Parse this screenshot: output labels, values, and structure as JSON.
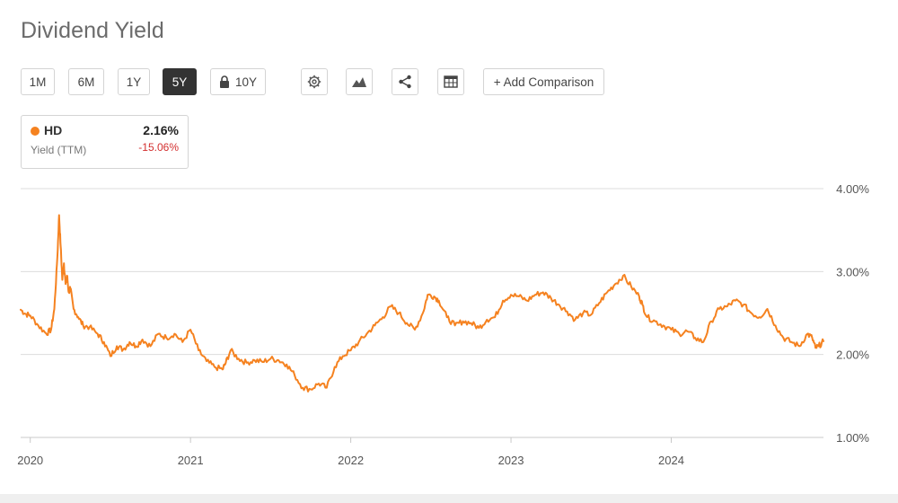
{
  "page": {
    "title": "Dividend Yield"
  },
  "toolbar": {
    "ranges": [
      {
        "label": "1M",
        "active": false
      },
      {
        "label": "6M",
        "active": false
      },
      {
        "label": "1Y",
        "active": false
      },
      {
        "label": "5Y",
        "active": true
      },
      {
        "label": "10Y",
        "active": false,
        "locked": true
      }
    ],
    "icons": [
      "gear-icon",
      "mountain-chart-icon",
      "share-icon",
      "table-icon"
    ],
    "add_comparison": "+ Add Comparison"
  },
  "legend": {
    "symbol": "HD",
    "value": "2.16%",
    "metric": "Yield (TTM)",
    "change": "-15.06%",
    "dot_color": "#f58220",
    "change_color": "#d32f2f"
  },
  "colors": {
    "line": "#f58220",
    "grid": "#dcdcdc",
    "axis_text": "#555555"
  },
  "chart_data": {
    "type": "line",
    "title": "Dividend Yield",
    "xlabel": "",
    "ylabel": "",
    "x_tick_labels": [
      "2020",
      "2021",
      "2022",
      "2023",
      "2024"
    ],
    "y_tick_labels": [
      "1.00%",
      "2.00%",
      "3.00%",
      "4.00%"
    ],
    "ylim": [
      1.0,
      4.0
    ],
    "xlim": [
      2019.94,
      2024.95
    ],
    "grid": "horizontal",
    "legend_position": "top-left",
    "series": [
      {
        "name": "HD",
        "x": [
          2019.94,
          2019.97,
          2020.0,
          2020.05,
          2020.1,
          2020.13,
          2020.15,
          2020.17,
          2020.18,
          2020.19,
          2020.2,
          2020.21,
          2020.22,
          2020.23,
          2020.24,
          2020.25,
          2020.27,
          2020.3,
          2020.33,
          2020.37,
          2020.42,
          2020.46,
          2020.5,
          2020.54,
          2020.58,
          2020.62,
          2020.66,
          2020.7,
          2020.75,
          2020.8,
          2020.85,
          2020.9,
          2020.95,
          2021.0,
          2021.05,
          2021.1,
          2021.15,
          2021.2,
          2021.22,
          2021.25,
          2021.3,
          2021.35,
          2021.4,
          2021.45,
          2021.5,
          2021.55,
          2021.6,
          2021.65,
          2021.7,
          2021.75,
          2021.8,
          2021.85,
          2021.9,
          2021.95,
          2022.0,
          2022.05,
          2022.1,
          2022.15,
          2022.2,
          2022.25,
          2022.3,
          2022.35,
          2022.4,
          2022.45,
          2022.48,
          2022.52,
          2022.55,
          2022.6,
          2022.65,
          2022.7,
          2022.75,
          2022.8,
          2022.85,
          2022.9,
          2022.95,
          2023.0,
          2023.05,
          2023.1,
          2023.15,
          2023.2,
          2023.25,
          2023.3,
          2023.35,
          2023.4,
          2023.45,
          2023.5,
          2023.55,
          2023.6,
          2023.65,
          2023.7,
          2023.75,
          2023.8,
          2023.82,
          2023.85,
          2023.9,
          2023.95,
          2024.0,
          2024.05,
          2024.1,
          2024.15,
          2024.2,
          2024.25,
          2024.3,
          2024.35,
          2024.4,
          2024.45,
          2024.5,
          2024.55,
          2024.6,
          2024.65,
          2024.7,
          2024.75,
          2024.8,
          2024.85,
          2024.88,
          2024.9,
          2024.92,
          2024.95
        ],
        "values": [
          2.54,
          2.49,
          2.47,
          2.35,
          2.25,
          2.3,
          2.55,
          3.2,
          3.68,
          3.3,
          2.9,
          3.1,
          2.85,
          2.95,
          2.75,
          2.8,
          2.55,
          2.45,
          2.35,
          2.33,
          2.25,
          2.15,
          1.98,
          2.1,
          2.06,
          2.15,
          2.1,
          2.18,
          2.1,
          2.25,
          2.2,
          2.25,
          2.15,
          2.3,
          2.05,
          1.92,
          1.85,
          1.82,
          1.9,
          2.05,
          1.95,
          1.9,
          1.93,
          1.91,
          1.95,
          1.93,
          1.88,
          1.75,
          1.6,
          1.58,
          1.65,
          1.6,
          1.85,
          1.98,
          2.05,
          2.15,
          2.25,
          2.35,
          2.45,
          2.58,
          2.5,
          2.38,
          2.3,
          2.5,
          2.72,
          2.7,
          2.65,
          2.45,
          2.35,
          2.4,
          2.38,
          2.32,
          2.42,
          2.45,
          2.65,
          2.72,
          2.7,
          2.65,
          2.72,
          2.75,
          2.68,
          2.6,
          2.52,
          2.42,
          2.5,
          2.48,
          2.62,
          2.75,
          2.85,
          2.95,
          2.82,
          2.7,
          2.6,
          2.45,
          2.4,
          2.35,
          2.3,
          2.25,
          2.28,
          2.2,
          2.15,
          2.4,
          2.55,
          2.58,
          2.65,
          2.6,
          2.5,
          2.45,
          2.55,
          2.35,
          2.2,
          2.15,
          2.1,
          2.25,
          2.2,
          2.08,
          2.1,
          2.16
        ]
      }
    ]
  }
}
